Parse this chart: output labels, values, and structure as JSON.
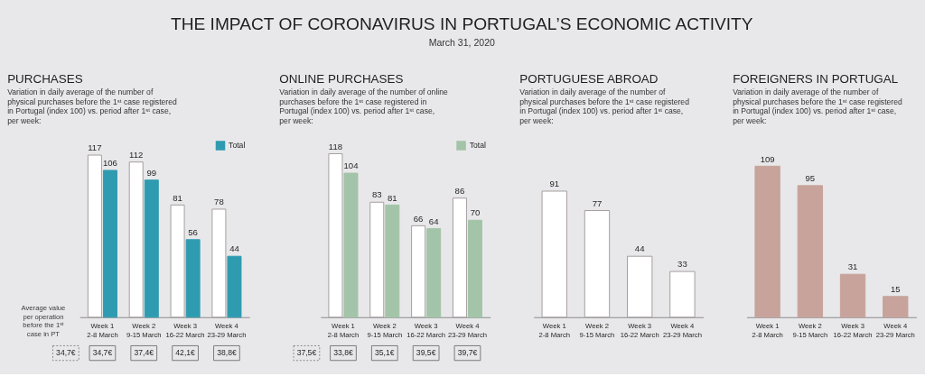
{
  "chart_data": [
    {
      "type": "other",
      "title": "THE IMPACT OF CORONAVIRUS IN PORTUGAL’S ECONOMIC ACTIVITY",
      "subtitle": "March 31, 2020"
    },
    {
      "type": "bar",
      "title": "PURCHASES",
      "subtitle": "Variation in daily average of the number of physical purchases before the 1ˢᵗ case registered in Portugal (index 100) vs. period after 1ˢᵗ case, per week:",
      "categories": [
        "Week 1\n2-8 March",
        "Week 2\n9-15 March",
        "Week 3\n16-22 March",
        "Week 4\n23-29 March"
      ],
      "series": [
        {
          "color": "#ffffff",
          "values": [
            117,
            112,
            81,
            78
          ]
        },
        {
          "name": "Total",
          "color": "#2f9bb0",
          "values": [
            106,
            99,
            56,
            44
          ]
        }
      ],
      "data_labels": true,
      "legend": "top right",
      "annotations": [
        "Average value per operation before the 1ˢᵗ case in PT",
        "34,7€",
        "34,7€",
        "37,4€",
        "42,1€",
        "38,8€"
      ]
    },
    {
      "type": "bar",
      "title": "ONLINE PURCHASES",
      "subtitle": "Variation in daily average of the number of online purchases before the 1ˢᵗ case registered in Portugal (index 100) vs. period after 1ˢᵗ case, per week:",
      "categories": [
        "Week 1\n2-8 March",
        "Week 2\n9-15 March",
        "Week 3\n16-22 March",
        "Week 4\n23-29 March"
      ],
      "series": [
        {
          "color": "#ffffff",
          "values": [
            118,
            83,
            66,
            86
          ]
        },
        {
          "name": "Total",
          "color": "#a3c4a8",
          "values": [
            104,
            81,
            64,
            70
          ]
        }
      ],
      "data_labels": true,
      "legend": "top right",
      "annotations": [
        "37,5€",
        "33,8€",
        "35,1€",
        "39,5€",
        "39,7€"
      ]
    },
    {
      "type": "bar",
      "title": "PORTUGUESE ABROAD",
      "subtitle": "Variation in daily average of the number of physical purchases before the 1ˢᵗ case registered in Portugal (index 100) vs. period after 1ˢᵗ case, per week:",
      "categories": [
        "Week 1\n2-8 March",
        "Week 2\n9-15 March",
        "Week 3\n16-22 March",
        "Week 4\n23-29 March"
      ],
      "series": [
        {
          "color": "#ffffff",
          "values": [
            91,
            77,
            44,
            33
          ]
        }
      ],
      "data_labels": true
    },
    {
      "type": "bar",
      "title": "FOREIGNERS IN PORTUGAL",
      "subtitle": "Variation in daily average of the number of physical purchases before the 1ˢᵗ case registered in Portugal (index 100) vs. period after 1ˢᵗ case, per week:",
      "categories": [
        "Week 1\n2-8 March",
        "Week 2\n9-15 March",
        "Week 3\n16-22 March",
        "Week 4\n23-29 March"
      ],
      "series": [
        {
          "color": "#c7a39b",
          "values": [
            109,
            95,
            31,
            15
          ]
        }
      ],
      "data_labels": true
    }
  ]
}
